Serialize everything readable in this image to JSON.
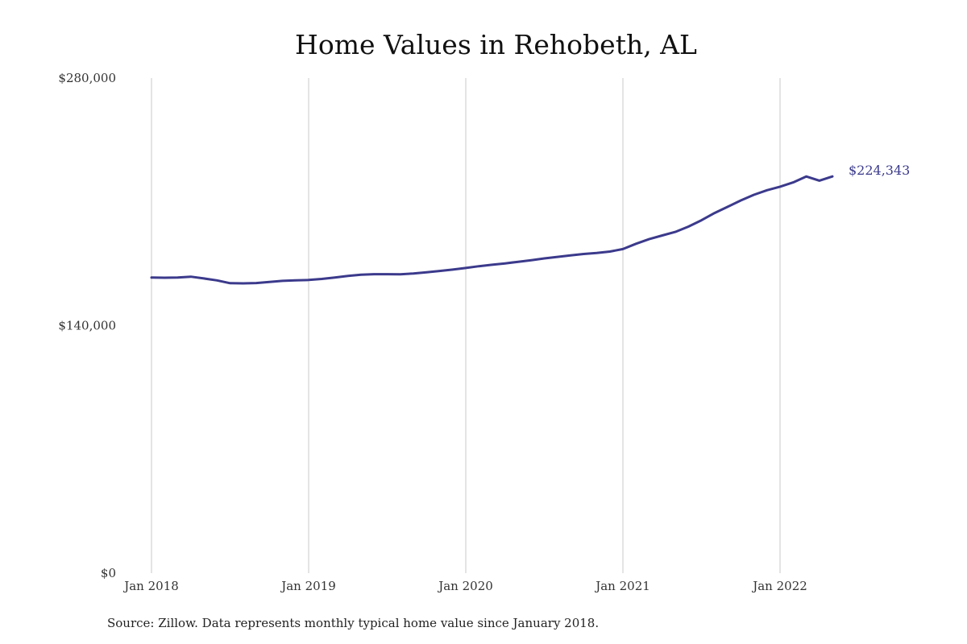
{
  "colors": {
    "line": "#3b3a8c",
    "grid": "#c8c8c8",
    "text": "#333333"
  },
  "source_note": "Source: Zillow. Data represents monthly typical home value since January 2018.",
  "chart_data": {
    "type": "line",
    "title": "Home Values in Rehobeth, AL",
    "xlabel": "",
    "ylabel": "",
    "ylim": [
      0,
      280000
    ],
    "xlim": [
      "2018-01",
      "2022-05"
    ],
    "y_ticks": [
      {
        "value": 0,
        "label": "$0"
      },
      {
        "value": 140000,
        "label": "$140,000"
      },
      {
        "value": 280000,
        "label": "$280,000"
      }
    ],
    "x_ticks": [
      {
        "value": "2018-01",
        "label": "Jan 2018"
      },
      {
        "value": "2019-01",
        "label": "Jan 2019"
      },
      {
        "value": "2020-01",
        "label": "Jan 2020"
      },
      {
        "value": "2021-01",
        "label": "Jan 2021"
      },
      {
        "value": "2022-01",
        "label": "Jan 2022"
      }
    ],
    "grid": {
      "vertical": true,
      "horizontal": false
    },
    "end_label": "$224,343",
    "series": [
      {
        "x": [
          "2018-01",
          "2018-02",
          "2018-03",
          "2018-04",
          "2018-05",
          "2018-06",
          "2018-07",
          "2018-08",
          "2018-09",
          "2018-10",
          "2018-11",
          "2018-12",
          "2019-01",
          "2019-02",
          "2019-03",
          "2019-04",
          "2019-05",
          "2019-06",
          "2019-07",
          "2019-08",
          "2019-09",
          "2019-10",
          "2019-11",
          "2019-12",
          "2020-01",
          "2020-02",
          "2020-03",
          "2020-04",
          "2020-05",
          "2020-06",
          "2020-07",
          "2020-08",
          "2020-09",
          "2020-10",
          "2020-11",
          "2020-12",
          "2021-01",
          "2021-02",
          "2021-03",
          "2021-04",
          "2021-05",
          "2021-06",
          "2021-07",
          "2021-08",
          "2021-09",
          "2021-10",
          "2021-11",
          "2021-12",
          "2022-01",
          "2022-02",
          "2022-03",
          "2022-04",
          "2022-05"
        ],
        "values": [
          167200,
          167100,
          167200,
          167700,
          166700,
          165600,
          164000,
          163900,
          164100,
          164700,
          165300,
          165600,
          165800,
          166400,
          167200,
          168100,
          168800,
          169100,
          169100,
          169000,
          169500,
          170200,
          170900,
          171700,
          172600,
          173600,
          174400,
          175200,
          176100,
          177000,
          178000,
          178900,
          179700,
          180500,
          181100,
          181900,
          183300,
          186300,
          188900,
          191000,
          193000,
          196000,
          199600,
          203700,
          207200,
          210800,
          214000,
          216600,
          218600,
          221000,
          224343,
          229000,
          224343
        ]
      }
    ]
  }
}
